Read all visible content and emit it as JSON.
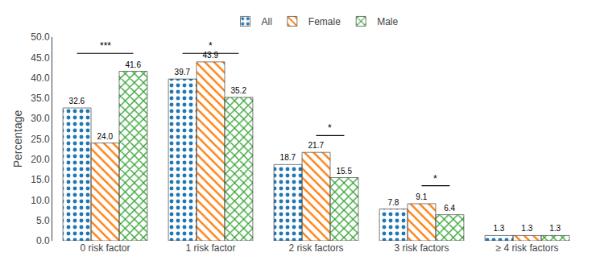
{
  "chart_data": {
    "type": "bar",
    "categories": [
      "0 risk factor",
      "1 risk factor",
      "2 risk factors",
      "3 risk factors",
      "≥ 4 risk factors"
    ],
    "series": [
      {
        "name": "All",
        "values": [
          32.6,
          39.7,
          18.7,
          7.8,
          1.3
        ],
        "value_labels": [
          "32.6",
          "39.7",
          "18.7",
          "7.8",
          "1.3"
        ]
      },
      {
        "name": "Female",
        "values": [
          24.0,
          43.9,
          21.7,
          9.1,
          1.3
        ],
        "value_labels": [
          "24.0",
          "43.9",
          "21.7",
          "9.1",
          "1.3"
        ]
      },
      {
        "name": "Male",
        "values": [
          41.6,
          35.2,
          15.5,
          6.4,
          1.3
        ],
        "value_labels": [
          "41.6",
          "35.2",
          "15.5",
          "6.4",
          "1.3"
        ]
      }
    ],
    "ylabel": "Percentage",
    "ylim": [
      0,
      50
    ],
    "yticks": [
      {
        "value": 0,
        "label": "0.0"
      },
      {
        "value": 5,
        "label": "5.0"
      },
      {
        "value": 10,
        "label": "10.0"
      },
      {
        "value": 15,
        "label": "15.0"
      },
      {
        "value": 20,
        "label": "20.0"
      },
      {
        "value": 25,
        "label": "25.0"
      },
      {
        "value": 30,
        "label": "30.0"
      },
      {
        "value": 35,
        "label": "35.0"
      },
      {
        "value": 40,
        "label": "40.0"
      },
      {
        "value": 45,
        "label": "45.0"
      },
      {
        "value": 50,
        "label": "50.0"
      }
    ],
    "grid": false,
    "legend": "top",
    "data_labels": true,
    "annotations": [
      {
        "text": "***",
        "category": "0 risk factor",
        "series": [
          "All",
          "Male"
        ],
        "y": 46.0
      },
      {
        "text": "*",
        "category": "1 risk factor",
        "series": [
          "All",
          "Male"
        ],
        "y": 46.0
      },
      {
        "text": "*",
        "category": "2 risk factors",
        "series": [
          "Female",
          "Male"
        ],
        "y": 25.8
      },
      {
        "text": "*",
        "category": "3 risk factors",
        "series": [
          "Female",
          "Male"
        ],
        "y": 13.5
      }
    ]
  }
}
